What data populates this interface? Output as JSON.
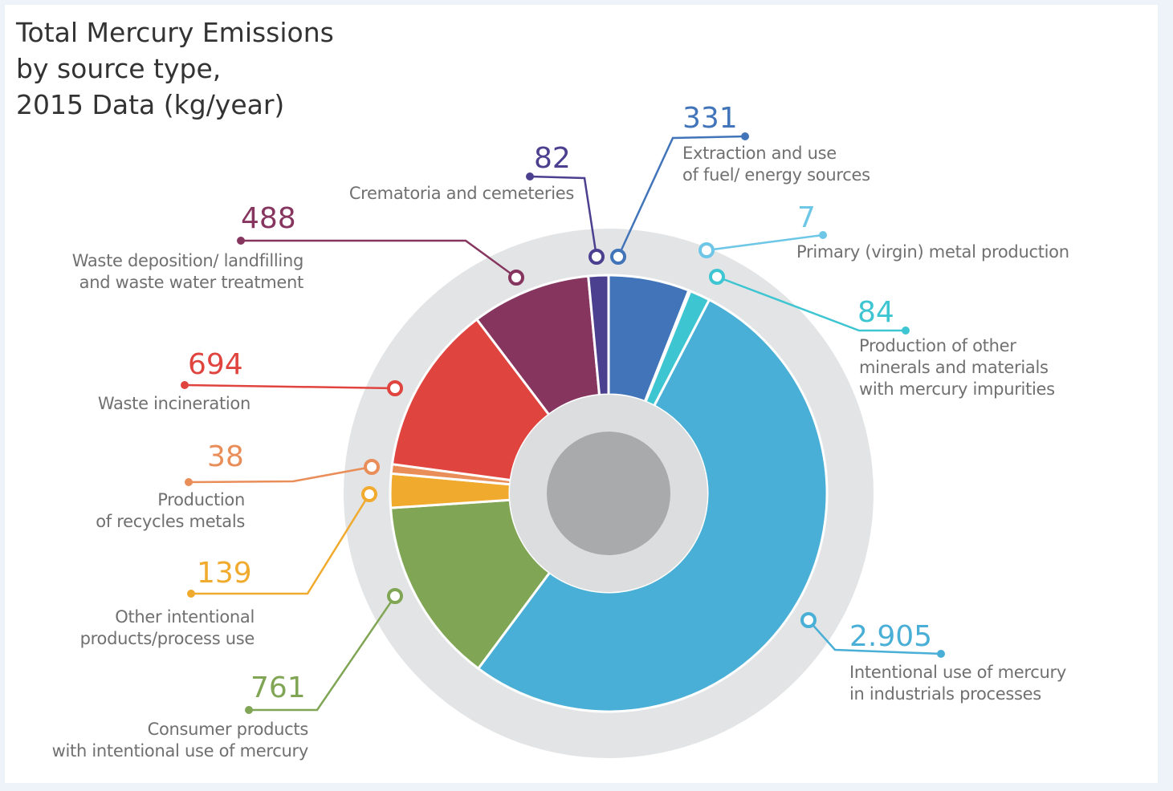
{
  "chart_data": {
    "type": "donut",
    "title": "Total Mercury Emissions\nby source type,\n2015 Data (kg/year)",
    "categories": [
      "Extraction and use\nof fuel/ energy sources",
      "Primary (virgin) metal production",
      "Production of other\nminerals and materials\nwith mercury impurities",
      "Intentional use of mercury\nin industrials processes",
      "Consumer products\nwith intentional use of mercury",
      "Other intentional\nproducts/process use",
      "Production\nof recycles metals",
      "Waste incineration",
      "Waste deposition/ landfilling\nand waste water treatment",
      "Crematoria and cemeteries"
    ],
    "values": [
      331,
      7,
      84,
      2905,
      761,
      139,
      38,
      694,
      488,
      82
    ],
    "value_labels": [
      "331",
      "7",
      "84",
      "2.905",
      "761",
      "139",
      "38",
      "694",
      "488",
      "82"
    ],
    "colors": [
      "#4174b9",
      "#6fc7e8",
      "#3ec5d2",
      "#4aafd6",
      "#80a655",
      "#f0aa2e",
      "#e98d59",
      "#e0443f",
      "#86355f",
      "#4b3f8f"
    ]
  }
}
